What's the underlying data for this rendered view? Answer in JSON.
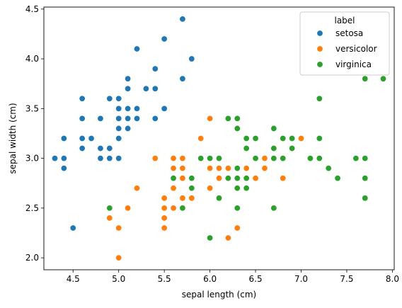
{
  "chart_data": {
    "type": "scatter",
    "title": "",
    "xlabel": "sepal length (cm)",
    "ylabel": "sepal width (cm)",
    "xlim": [
      4.18,
      8.02
    ],
    "ylim": [
      1.88,
      4.52
    ],
    "xticks": [
      "4.5",
      "5.0",
      "5.5",
      "6.0",
      "6.5",
      "7.0",
      "7.5",
      "8.0"
    ],
    "yticks": [
      "2.0",
      "2.5",
      "3.0",
      "3.5",
      "4.0",
      "4.5"
    ],
    "grid": false,
    "legend": {
      "title": "label",
      "placement": "top-right"
    },
    "series": [
      {
        "name": "setosa",
        "color": "#1f77b4",
        "points": [
          [
            4.3,
            3.0
          ],
          [
            4.4,
            3.0
          ],
          [
            4.4,
            2.9
          ],
          [
            4.4,
            3.2
          ],
          [
            4.5,
            2.3
          ],
          [
            4.6,
            3.1
          ],
          [
            4.6,
            3.2
          ],
          [
            4.6,
            3.4
          ],
          [
            4.6,
            3.6
          ],
          [
            4.7,
            3.2
          ],
          [
            4.8,
            3.0
          ],
          [
            4.8,
            3.1
          ],
          [
            4.8,
            3.4
          ],
          [
            4.9,
            3.0
          ],
          [
            4.9,
            3.1
          ],
          [
            4.9,
            3.6
          ],
          [
            5.0,
            3.0
          ],
          [
            5.0,
            3.2
          ],
          [
            5.0,
            3.3
          ],
          [
            5.0,
            3.4
          ],
          [
            5.0,
            3.5
          ],
          [
            5.0,
            3.6
          ],
          [
            5.1,
            3.3
          ],
          [
            5.1,
            3.4
          ],
          [
            5.1,
            3.5
          ],
          [
            5.1,
            3.7
          ],
          [
            5.1,
            3.8
          ],
          [
            5.2,
            3.4
          ],
          [
            5.2,
            3.5
          ],
          [
            5.2,
            4.1
          ],
          [
            5.3,
            3.7
          ],
          [
            5.4,
            3.4
          ],
          [
            5.4,
            3.7
          ],
          [
            5.4,
            3.9
          ],
          [
            5.5,
            3.5
          ],
          [
            5.5,
            4.2
          ],
          [
            5.7,
            3.8
          ],
          [
            5.7,
            4.4
          ],
          [
            5.8,
            4.0
          ]
        ]
      },
      {
        "name": "versicolor",
        "color": "#ff7f0e",
        "points": [
          [
            4.9,
            2.4
          ],
          [
            5.0,
            2.0
          ],
          [
            5.0,
            2.3
          ],
          [
            5.1,
            2.5
          ],
          [
            5.2,
            2.7
          ],
          [
            5.4,
            3.0
          ],
          [
            5.5,
            2.3
          ],
          [
            5.5,
            2.4
          ],
          [
            5.5,
            2.5
          ],
          [
            5.5,
            2.6
          ],
          [
            5.6,
            2.5
          ],
          [
            5.6,
            2.7
          ],
          [
            5.6,
            2.9
          ],
          [
            5.6,
            3.0
          ],
          [
            5.7,
            2.6
          ],
          [
            5.7,
            2.8
          ],
          [
            5.7,
            2.9
          ],
          [
            5.7,
            3.0
          ],
          [
            5.8,
            2.6
          ],
          [
            5.8,
            2.7
          ],
          [
            5.9,
            3.0
          ],
          [
            5.9,
            3.2
          ],
          [
            6.0,
            2.2
          ],
          [
            6.0,
            2.7
          ],
          [
            6.0,
            2.9
          ],
          [
            6.0,
            3.4
          ],
          [
            6.1,
            2.8
          ],
          [
            6.1,
            2.9
          ],
          [
            6.1,
            3.0
          ],
          [
            6.2,
            2.2
          ],
          [
            6.2,
            2.9
          ],
          [
            6.3,
            2.3
          ],
          [
            6.3,
            2.5
          ],
          [
            6.3,
            3.3
          ],
          [
            6.4,
            2.9
          ],
          [
            6.4,
            3.2
          ],
          [
            6.5,
            2.8
          ],
          [
            6.6,
            2.9
          ],
          [
            6.6,
            3.0
          ],
          [
            6.7,
            3.0
          ],
          [
            6.7,
            3.1
          ],
          [
            6.8,
            2.8
          ],
          [
            6.9,
            3.1
          ],
          [
            7.0,
            3.2
          ]
        ]
      },
      {
        "name": "virginica",
        "color": "#2ca02c",
        "points": [
          [
            4.9,
            2.5
          ],
          [
            5.6,
            2.8
          ],
          [
            5.7,
            2.5
          ],
          [
            5.8,
            2.7
          ],
          [
            5.8,
            2.8
          ],
          [
            5.9,
            3.0
          ],
          [
            6.0,
            2.2
          ],
          [
            6.0,
            3.0
          ],
          [
            6.1,
            2.6
          ],
          [
            6.1,
            3.0
          ],
          [
            6.2,
            2.8
          ],
          [
            6.2,
            3.4
          ],
          [
            6.3,
            2.5
          ],
          [
            6.3,
            2.7
          ],
          [
            6.3,
            2.8
          ],
          [
            6.3,
            2.9
          ],
          [
            6.3,
            3.3
          ],
          [
            6.3,
            3.4
          ],
          [
            6.4,
            2.7
          ],
          [
            6.4,
            2.8
          ],
          [
            6.4,
            3.1
          ],
          [
            6.4,
            3.2
          ],
          [
            6.5,
            3.0
          ],
          [
            6.5,
            3.2
          ],
          [
            6.7,
            2.5
          ],
          [
            6.7,
            3.0
          ],
          [
            6.7,
            3.1
          ],
          [
            6.7,
            3.3
          ],
          [
            6.8,
            3.0
          ],
          [
            6.8,
            3.2
          ],
          [
            6.9,
            3.1
          ],
          [
            6.9,
            3.2
          ],
          [
            7.1,
            3.0
          ],
          [
            7.2,
            3.0
          ],
          [
            7.2,
            3.2
          ],
          [
            7.2,
            3.6
          ],
          [
            7.3,
            2.9
          ],
          [
            7.4,
            2.8
          ],
          [
            7.6,
            3.0
          ],
          [
            7.7,
            2.6
          ],
          [
            7.7,
            2.8
          ],
          [
            7.7,
            3.0
          ],
          [
            7.7,
            3.8
          ],
          [
            7.9,
            3.8
          ]
        ]
      }
    ]
  }
}
